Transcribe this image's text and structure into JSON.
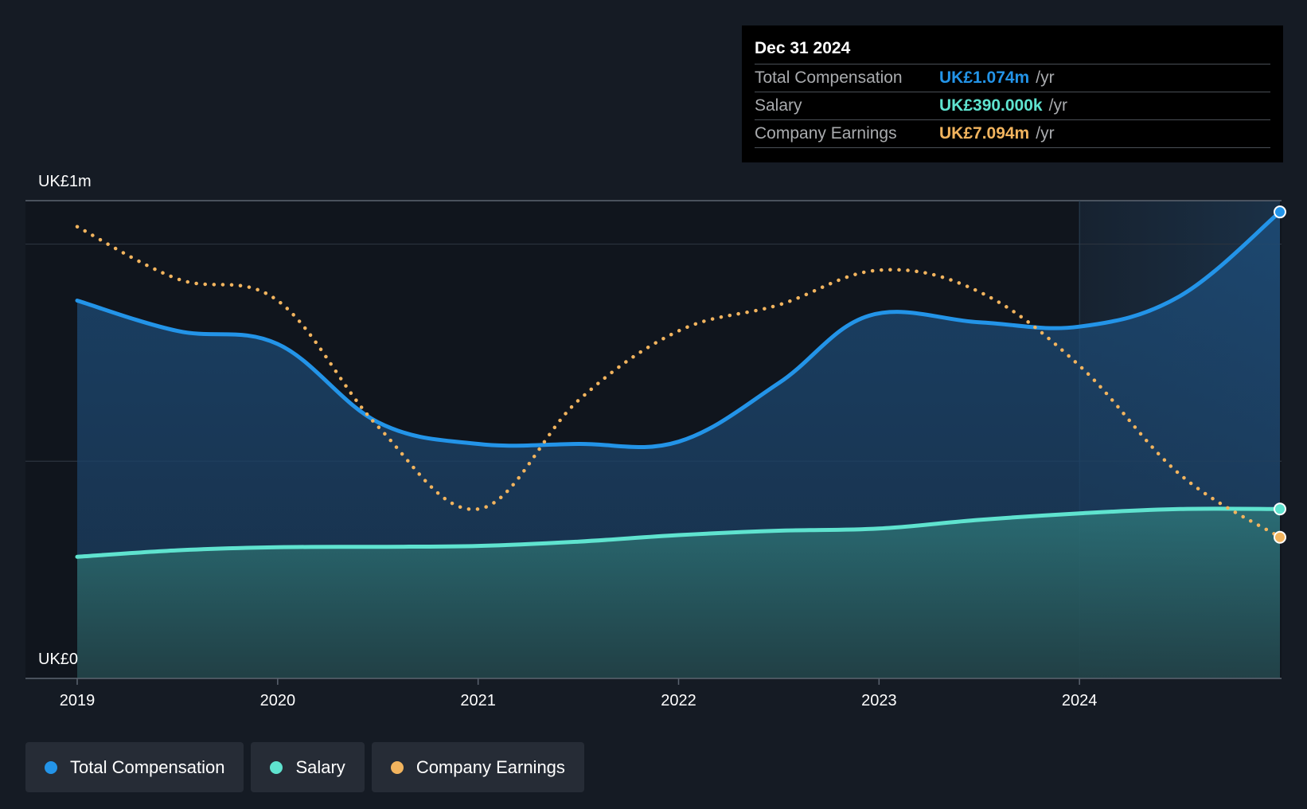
{
  "tooltip": {
    "date": "Dec 31 2024",
    "rows": [
      {
        "label": "Total Compensation",
        "value": "UK£1.074m",
        "unit": "/yr",
        "color": "#2394e8"
      },
      {
        "label": "Salary",
        "value": "UK£390.000k",
        "unit": "/yr",
        "color": "#5fe3cf"
      },
      {
        "label": "Company Earnings",
        "value": "UK£7.094m",
        "unit": "/yr",
        "color": "#f2b45e"
      }
    ]
  },
  "legend": [
    {
      "label": "Total Compensation",
      "color": "#2394e8"
    },
    {
      "label": "Salary",
      "color": "#5fe3cf"
    },
    {
      "label": "Company Earnings",
      "color": "#f2b45e"
    }
  ],
  "chart_data": {
    "type": "line",
    "title": "",
    "xlabel": "",
    "ylabel": "",
    "x_ticks": [
      2019,
      2020,
      2021,
      2022,
      2023,
      2024
    ],
    "xlim": [
      2019,
      2025
    ],
    "ylim": [
      0,
      1.1
    ],
    "y_tick_labels": [
      {
        "value": 1.1,
        "label": "UK£1m"
      },
      {
        "value": 0,
        "label": "UK£0"
      }
    ],
    "gridlines": [
      1.0,
      0.5
    ],
    "highlight_from_x": 2024,
    "series": [
      {
        "name": "Total Compensation",
        "color": "#2394e8",
        "style": "solid",
        "area": true,
        "points": [
          [
            2019.0,
            0.87
          ],
          [
            2019.5,
            0.8
          ],
          [
            2020.0,
            0.77
          ],
          [
            2020.5,
            0.59
          ],
          [
            2021.0,
            0.54
          ],
          [
            2021.5,
            0.54
          ],
          [
            2022.0,
            0.545
          ],
          [
            2022.5,
            0.68
          ],
          [
            2022.95,
            0.835
          ],
          [
            2023.5,
            0.82
          ],
          [
            2024.0,
            0.81
          ],
          [
            2024.5,
            0.88
          ],
          [
            2025.0,
            1.074
          ]
        ]
      },
      {
        "name": "Salary",
        "color": "#5fe3cf",
        "style": "solid",
        "area": true,
        "points": [
          [
            2019.0,
            0.28
          ],
          [
            2019.5,
            0.295
          ],
          [
            2020.0,
            0.302
          ],
          [
            2020.5,
            0.303
          ],
          [
            2021.0,
            0.305
          ],
          [
            2021.5,
            0.315
          ],
          [
            2022.0,
            0.33
          ],
          [
            2022.5,
            0.34
          ],
          [
            2023.0,
            0.345
          ],
          [
            2023.5,
            0.365
          ],
          [
            2024.0,
            0.38
          ],
          [
            2024.5,
            0.39
          ],
          [
            2025.0,
            0.39
          ]
        ]
      },
      {
        "name": "Company Earnings",
        "color": "#f2b45e",
        "style": "dotted",
        "area": false,
        "points": [
          [
            2019.0,
            1.04
          ],
          [
            2019.5,
            0.92
          ],
          [
            2020.0,
            0.87
          ],
          [
            2020.5,
            0.58
          ],
          [
            2021.0,
            0.39
          ],
          [
            2021.5,
            0.64
          ],
          [
            2022.0,
            0.8
          ],
          [
            2022.5,
            0.86
          ],
          [
            2023.0,
            0.94
          ],
          [
            2023.5,
            0.89
          ],
          [
            2024.0,
            0.72
          ],
          [
            2024.5,
            0.47
          ],
          [
            2025.0,
            0.325
          ]
        ]
      }
    ]
  }
}
